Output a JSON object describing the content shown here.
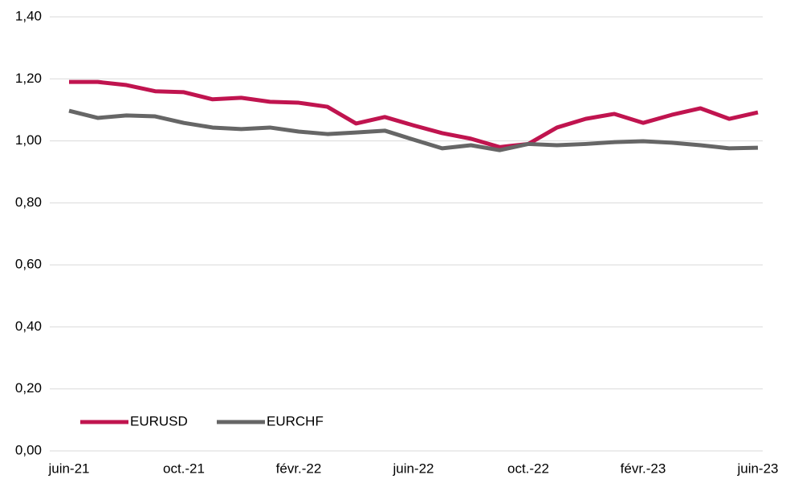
{
  "chart_data": {
    "type": "line",
    "categories": [
      "juin-21",
      null,
      null,
      null,
      "oct.-21",
      null,
      null,
      null,
      "févr.-22",
      null,
      null,
      null,
      "juin-22",
      null,
      null,
      null,
      "oct.-22",
      null,
      null,
      null,
      "févr.-23",
      null,
      null,
      null,
      "juin-23"
    ],
    "series": [
      {
        "name": "EURUSD",
        "color": "#c0144f",
        "values": [
          1.19,
          1.19,
          1.18,
          1.16,
          1.157,
          1.134,
          1.139,
          1.126,
          1.123,
          1.11,
          1.056,
          1.077,
          1.05,
          1.025,
          1.007,
          0.98,
          0.99,
          1.043,
          1.071,
          1.087,
          1.058,
          1.084,
          1.105,
          1.071,
          1.092
        ]
      },
      {
        "name": "EURCHF",
        "color": "#666666",
        "values": [
          1.097,
          1.074,
          1.082,
          1.079,
          1.058,
          1.043,
          1.038,
          1.043,
          1.03,
          1.022,
          1.027,
          1.033,
          1.004,
          0.976,
          0.986,
          0.97,
          0.99,
          0.986,
          0.99,
          0.996,
          0.999,
          0.994,
          0.986,
          0.976,
          0.978
        ]
      }
    ],
    "ylim": [
      0,
      1.4
    ],
    "yticks": [
      {
        "value": 0,
        "label": "0,00"
      },
      {
        "value": 0.2,
        "label": "0,20"
      },
      {
        "value": 0.4,
        "label": "0,40"
      },
      {
        "value": 0.6,
        "label": "0,60"
      },
      {
        "value": 0.8,
        "label": "0,80"
      },
      {
        "value": 1,
        "label": "1,00"
      },
      {
        "value": 1.2,
        "label": "1,20"
      },
      {
        "value": 1.4,
        "label": "1,40"
      }
    ],
    "grid": true,
    "legend": "lower-left"
  }
}
